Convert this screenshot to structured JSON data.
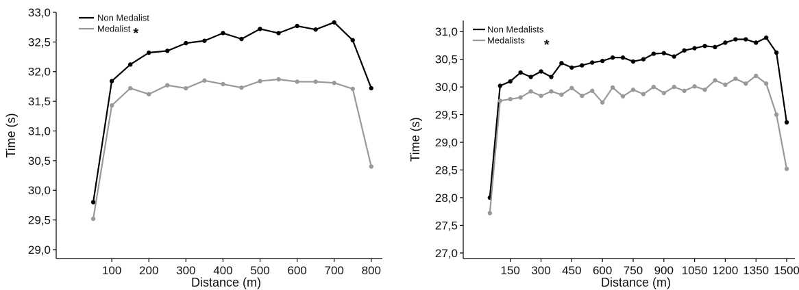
{
  "chart_data": [
    {
      "type": "line",
      "xlabel": "Distance (m)",
      "ylabel": "Time (s)",
      "xlim": [
        -50,
        830
      ],
      "ylim": [
        28.85,
        33.0
      ],
      "x_ticks": [
        100,
        200,
        300,
        400,
        500,
        600,
        700,
        800
      ],
      "x_tick_labels": [
        "100",
        "200",
        "300",
        "400",
        "500",
        "600",
        "700",
        "800"
      ],
      "y_ticks": [
        29.0,
        29.5,
        30.0,
        30.5,
        31.0,
        31.5,
        32.0,
        32.5,
        33.0
      ],
      "y_tick_labels": [
        "29,0",
        "29,5",
        "30,0",
        "30,5",
        "31,0",
        "31,5",
        "32,0",
        "32,5",
        "33,0"
      ],
      "x": [
        50,
        100,
        150,
        200,
        250,
        300,
        350,
        400,
        450,
        500,
        550,
        600,
        650,
        700,
        750,
        800
      ],
      "series": [
        {
          "name": "Non Medalist",
          "color": "#000000",
          "values": [
            29.8,
            31.84,
            32.12,
            32.32,
            32.35,
            32.48,
            32.52,
            32.65,
            32.55,
            32.72,
            32.65,
            32.77,
            32.71,
            32.83,
            32.53,
            31.72
          ]
        },
        {
          "name": "Medalist",
          "color": "#999999",
          "values": [
            29.52,
            31.43,
            31.72,
            31.62,
            31.77,
            31.72,
            31.85,
            31.79,
            31.73,
            31.84,
            31.87,
            31.83,
            31.83,
            31.81,
            31.71,
            30.4
          ]
        }
      ],
      "legend_position": "top-left",
      "annotation": "*",
      "grid": false
    },
    {
      "type": "line",
      "xlabel": "Distance (m)",
      "ylabel": "Time (s)",
      "xlim": [
        -80,
        1540
      ],
      "ylim": [
        26.9,
        31.2
      ],
      "x_ticks": [
        150,
        300,
        450,
        600,
        750,
        900,
        1050,
        1200,
        1350,
        1500
      ],
      "x_tick_labels": [
        "150",
        "300",
        "450",
        "600",
        "750",
        "900",
        "1050",
        "1200",
        "1350",
        "1500"
      ],
      "y_ticks": [
        27.0,
        27.5,
        28.0,
        28.5,
        29.0,
        29.5,
        30.0,
        30.5,
        31.0
      ],
      "y_tick_labels": [
        "27,0",
        "27,5",
        "28,0",
        "28,5",
        "29,0",
        "29,5",
        "30,0",
        "30,5",
        "31,0"
      ],
      "x": [
        50,
        100,
        150,
        200,
        250,
        300,
        350,
        400,
        450,
        500,
        550,
        600,
        650,
        700,
        750,
        800,
        850,
        900,
        950,
        1000,
        1050,
        1100,
        1150,
        1200,
        1250,
        1300,
        1350,
        1400,
        1450,
        1500
      ],
      "series": [
        {
          "name": "Non Medalists",
          "color": "#000000",
          "values": [
            28.0,
            30.02,
            30.1,
            30.26,
            30.18,
            30.28,
            30.18,
            30.43,
            30.35,
            30.39,
            30.44,
            30.47,
            30.53,
            30.53,
            30.46,
            30.5,
            30.6,
            30.61,
            30.55,
            30.66,
            30.7,
            30.74,
            30.72,
            30.8,
            30.86,
            30.86,
            30.8,
            30.89,
            30.62,
            29.36
          ]
        },
        {
          "name": "Medalists",
          "color": "#999999",
          "values": [
            27.72,
            29.75,
            29.78,
            29.81,
            29.92,
            29.84,
            29.92,
            29.86,
            29.98,
            29.84,
            29.93,
            29.72,
            29.99,
            29.83,
            29.95,
            29.87,
            30.0,
            29.89,
            30.0,
            29.93,
            30.01,
            29.95,
            30.12,
            30.04,
            30.15,
            30.06,
            30.2,
            30.06,
            29.5,
            28.52
          ]
        }
      ],
      "legend_position": "top-left",
      "annotation": "*",
      "grid": false
    }
  ]
}
